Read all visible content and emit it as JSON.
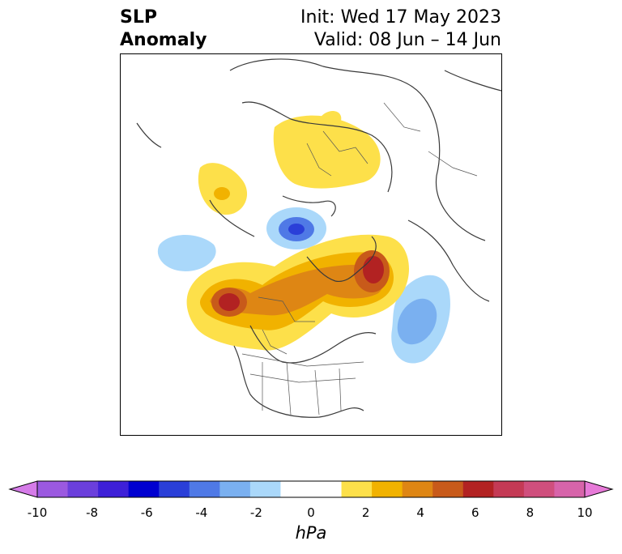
{
  "title": {
    "left_line1": "SLP",
    "left_line2": "Anomaly",
    "right_line1": "Init: Wed 17 May 2023",
    "right_line2": "Valid: 08 Jun – 14 Jun"
  },
  "colorbar": {
    "units": "hPa",
    "ticks": [
      "-10",
      "-8",
      "-6",
      "-4",
      "-2",
      "0",
      "2",
      "4",
      "6",
      "8",
      "10"
    ],
    "colors": [
      "#d57be8",
      "#9b59e0",
      "#6b3fdc",
      "#3e20d8",
      "#0000d0",
      "#2a3fd8",
      "#4f79e6",
      "#7ab0f0",
      "#aad8fa",
      "#ffffff",
      "#ffffff",
      "#fde04a",
      "#f1b200",
      "#de8614",
      "#c85a1a",
      "#b22222",
      "#c43a55",
      "#cf4f7d",
      "#d764aa",
      "#e77ad8"
    ]
  },
  "map": {
    "projection": "polar-stereographic",
    "features": [
      "coastlines",
      "country-borders",
      "us-state-borders",
      "canada-province-borders"
    ]
  }
}
